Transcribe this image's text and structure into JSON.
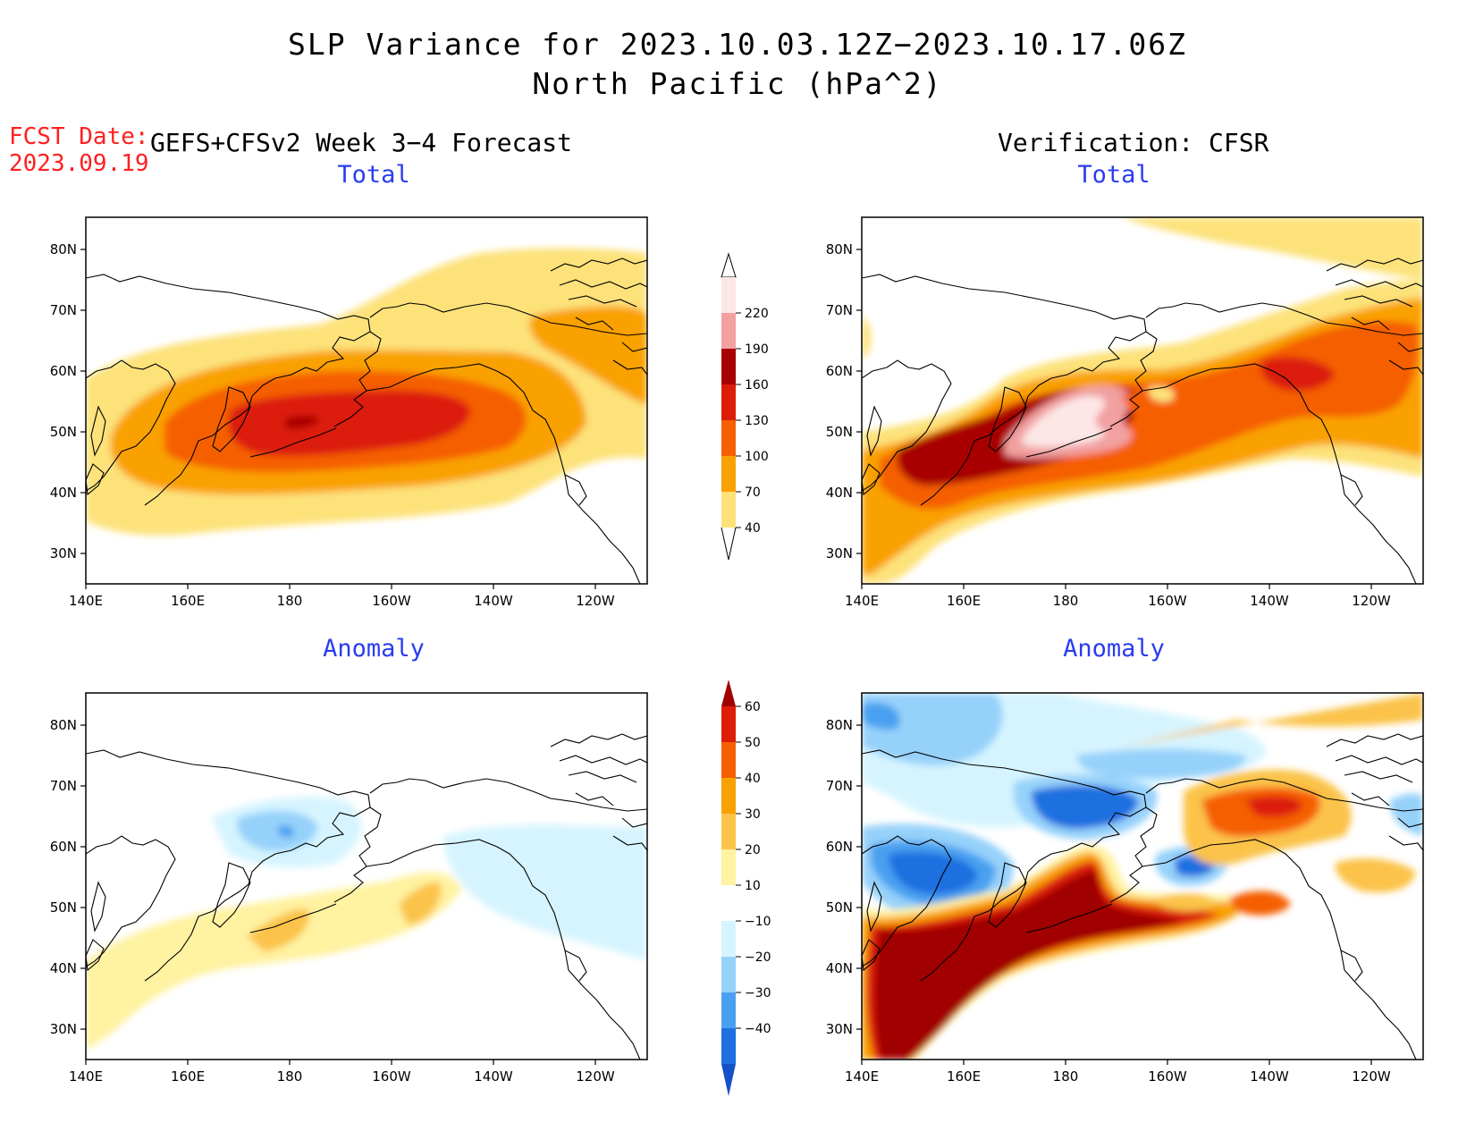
{
  "title": {
    "line1": "SLP Variance for 2023.10.03.12Z−2023.10.17.06Z",
    "line2": "North Pacific (hPa^2)"
  },
  "forecast_date": {
    "label": "FCST Date:",
    "value": "2023.09.19"
  },
  "column_headers": {
    "left": "GEFS+CFSv2 Week 3−4 Forecast",
    "right": "Verification: CFSR"
  },
  "panels": [
    {
      "id": "forecast-total",
      "title": "Total"
    },
    {
      "id": "verification-total",
      "title": "Total"
    },
    {
      "id": "forecast-anomaly",
      "title": "Anomaly"
    },
    {
      "id": "verification-anomaly",
      "title": "Anomaly"
    }
  ],
  "axes": {
    "x_ticks": [
      "140E",
      "160E",
      "180",
      "160W",
      "140W",
      "120W"
    ],
    "y_ticks": [
      "80N",
      "70N",
      "60N",
      "50N",
      "40N",
      "30N"
    ]
  },
  "colorbars": {
    "total": {
      "labels": [
        "220",
        "190",
        "160",
        "130",
        "100",
        "70",
        "40"
      ],
      "colors": [
        "#fde6e6",
        "#f2a0a0",
        "#a80000",
        "#dc1e08",
        "#f55f00",
        "#f9a100",
        "#fde27a"
      ]
    },
    "anomaly": {
      "labels": [
        "60",
        "50",
        "40",
        "30",
        "20",
        "10",
        "−10",
        "−20",
        "−30",
        "−40"
      ],
      "colors": [
        "#a00000",
        "#dc1e08",
        "#f55f00",
        "#f9a100",
        "#fbc34a",
        "#fff2a0",
        "#ffffff",
        "#d6f4ff",
        "#96d1fa",
        "#4aa0f0",
        "#1e6fe0",
        "#1450c8"
      ]
    }
  },
  "colors": {
    "title_text": "#000000",
    "forecast_date_text": "#ff2020",
    "panel_title_text": "#2a3cf0"
  }
}
